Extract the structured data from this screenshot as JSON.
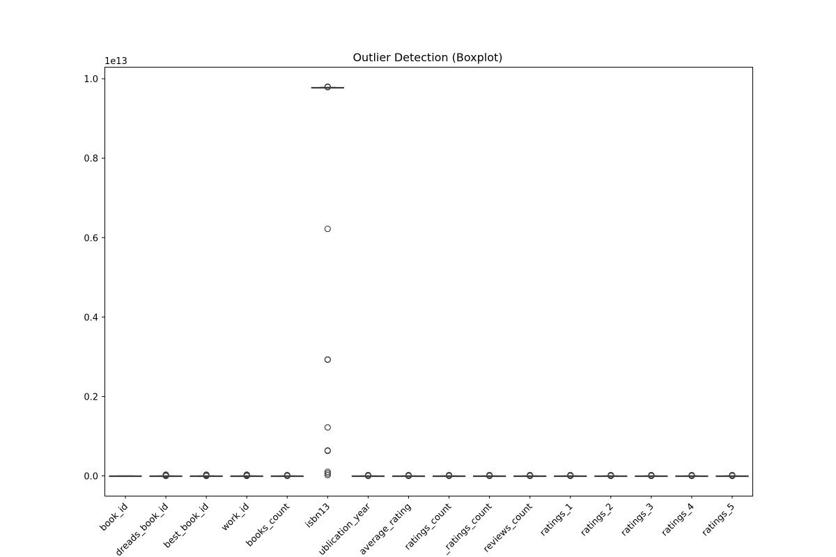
{
  "chart_data": {
    "type": "boxplot",
    "title": "Outlier Detection (Boxplot)",
    "xlabel": "",
    "ylabel": "",
    "y_offset_label": "1e13",
    "y_tick_labels": [
      "0.0",
      "0.2",
      "0.4",
      "0.6",
      "0.8",
      "1.0"
    ],
    "yticks": [
      0,
      0.2,
      0.4,
      0.6,
      0.8,
      1.0
    ],
    "ylim": [
      -0.05,
      1.03
    ],
    "y_scale": 10000000000000.0,
    "grid": false,
    "categories": [
      "book_id",
      "goodreads_book_id",
      "best_book_id",
      "work_id",
      "books_count",
      "isbn13",
      "original_publication_year",
      "average_rating",
      "ratings_count",
      "work_ratings_count",
      "work_text_reviews_count",
      "ratings_1",
      "ratings_2",
      "ratings_3",
      "ratings_4",
      "ratings_5"
    ],
    "visible_category_labels": [
      "book_id",
      "dreads_book_id",
      "best_book_id",
      "work_id",
      "books_count",
      "isbn13",
      "ublication_year",
      "average_rating",
      "ratings_count",
      "_ratings_count",
      "reviews_count",
      "ratings_1",
      "ratings_2",
      "ratings_3",
      "ratings_4",
      "ratings_5"
    ],
    "boxes": [
      {
        "name": "book_id",
        "q1": 0,
        "median": 0,
        "q3": 0,
        "whislo": 0,
        "whishi": 0,
        "fliers": []
      },
      {
        "name": "goodreads_book_id",
        "q1": 0,
        "median": 0,
        "q3": 0,
        "whislo": 0,
        "whishi": 0,
        "fliers": [
          0.0,
          0.001,
          0.002,
          0.003
        ]
      },
      {
        "name": "best_book_id",
        "q1": 0,
        "median": 0,
        "q3": 0,
        "whislo": 0,
        "whishi": 0,
        "fliers": [
          0.0,
          0.001,
          0.002,
          0.003
        ]
      },
      {
        "name": "work_id",
        "q1": 0,
        "median": 0,
        "q3": 0,
        "whislo": 0,
        "whishi": 0,
        "fliers": [
          0.0,
          0.001,
          0.002,
          0.003
        ]
      },
      {
        "name": "books_count",
        "q1": 0,
        "median": 0,
        "q3": 0,
        "whislo": 0,
        "whishi": 0,
        "fliers": [
          0.0,
          0.001,
          0.002
        ]
      },
      {
        "name": "isbn13",
        "q1": 0.978,
        "median": 0.9781,
        "q3": 0.9782,
        "whislo": 0.9777,
        "whishi": 0.9786,
        "fliers": [
          0.9795,
          0.98,
          0.979,
          0.622,
          0.293,
          0.2925,
          0.122,
          0.064,
          0.063,
          0.01,
          0.006,
          0.002
        ]
      },
      {
        "name": "original_publication_year",
        "q1": 0,
        "median": 0,
        "q3": 0,
        "whislo": 0,
        "whishi": 0,
        "fliers": [
          0.0,
          0.001,
          0.002
        ]
      },
      {
        "name": "average_rating",
        "q1": 0,
        "median": 0,
        "q3": 0,
        "whislo": 0,
        "whishi": 0,
        "fliers": [
          0.0,
          0.001,
          0.002
        ]
      },
      {
        "name": "ratings_count",
        "q1": 0,
        "median": 0,
        "q3": 0,
        "whislo": 0,
        "whishi": 0,
        "fliers": [
          0.0,
          0.001,
          0.002
        ]
      },
      {
        "name": "work_ratings_count",
        "q1": 0,
        "median": 0,
        "q3": 0,
        "whislo": 0,
        "whishi": 0,
        "fliers": [
          0.0,
          0.001,
          0.002
        ]
      },
      {
        "name": "work_text_reviews_count",
        "q1": 0,
        "median": 0,
        "q3": 0,
        "whislo": 0,
        "whishi": 0,
        "fliers": [
          0.0,
          0.001,
          0.002
        ]
      },
      {
        "name": "ratings_1",
        "q1": 0,
        "median": 0,
        "q3": 0,
        "whislo": 0,
        "whishi": 0,
        "fliers": [
          0.0,
          0.001,
          0.002
        ]
      },
      {
        "name": "ratings_2",
        "q1": 0,
        "median": 0,
        "q3": 0,
        "whislo": 0,
        "whishi": 0,
        "fliers": [
          0.0,
          0.001,
          0.002
        ]
      },
      {
        "name": "ratings_3",
        "q1": 0,
        "median": 0,
        "q3": 0,
        "whislo": 0,
        "whishi": 0,
        "fliers": [
          0.0,
          0.001,
          0.002
        ]
      },
      {
        "name": "ratings_4",
        "q1": 0,
        "median": 0,
        "q3": 0,
        "whislo": 0,
        "whishi": 0,
        "fliers": [
          0.0,
          0.001,
          0.002
        ]
      },
      {
        "name": "ratings_5",
        "q1": 0,
        "median": 0,
        "q3": 0,
        "whislo": 0,
        "whishi": 0,
        "fliers": [
          0.0,
          0.001,
          0.002
        ]
      }
    ],
    "colors": {
      "box_fill": "#ffffff",
      "box_edge": "#3d3d3d",
      "flier_edge": "#3d3d3d",
      "axes": "#000000"
    }
  }
}
